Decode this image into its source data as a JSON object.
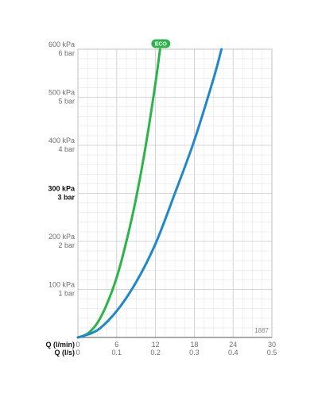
{
  "chart_data": {
    "type": "line",
    "x_unit": "l/min",
    "y_unit": "kPa",
    "xlim": [
      0,
      30
    ],
    "ylim": [
      0,
      600
    ],
    "grid": true,
    "x_axis_rows": [
      {
        "name": "Q (l/min)",
        "ticks": [
          "0",
          "6",
          "12",
          "18",
          "24",
          "30"
        ]
      },
      {
        "name": "Q (l/s)",
        "ticks": [
          "0",
          "0.1",
          "0.2",
          "0.3",
          "0.4",
          "0.5"
        ]
      }
    ],
    "y_ticks": [
      {
        "value": 100,
        "kpa": "100 kPa",
        "bar": "1 bar",
        "bold": false
      },
      {
        "value": 200,
        "kpa": "200 kPa",
        "bar": "2 bar",
        "bold": false
      },
      {
        "value": 300,
        "kpa": "300 kPa",
        "bar": "3 bar",
        "bold": true
      },
      {
        "value": 400,
        "kpa": "400 kPa",
        "bar": "4 bar",
        "bold": false
      },
      {
        "value": 500,
        "kpa": "500 kPa",
        "bar": "5 bar",
        "bold": false
      },
      {
        "value": 600,
        "kpa": "600 kPa",
        "bar": "6 bar",
        "bold": false
      }
    ],
    "series": [
      {
        "color": "#2cb34a",
        "badge": "ECO",
        "x": [
          0,
          1.5,
          3,
          4.5,
          6,
          7.5,
          9,
          10.5,
          12,
          12.7
        ],
        "y": [
          0,
          8,
          30,
          70,
          125,
          200,
          290,
          400,
          530,
          600
        ]
      },
      {
        "color": "#1f88c9",
        "x": [
          0,
          3,
          6,
          9,
          12,
          15,
          18,
          21,
          22.2
        ],
        "y": [
          0,
          15,
          55,
          115,
          195,
          300,
          410,
          540,
          600
        ]
      }
    ],
    "annotation": "1887"
  }
}
